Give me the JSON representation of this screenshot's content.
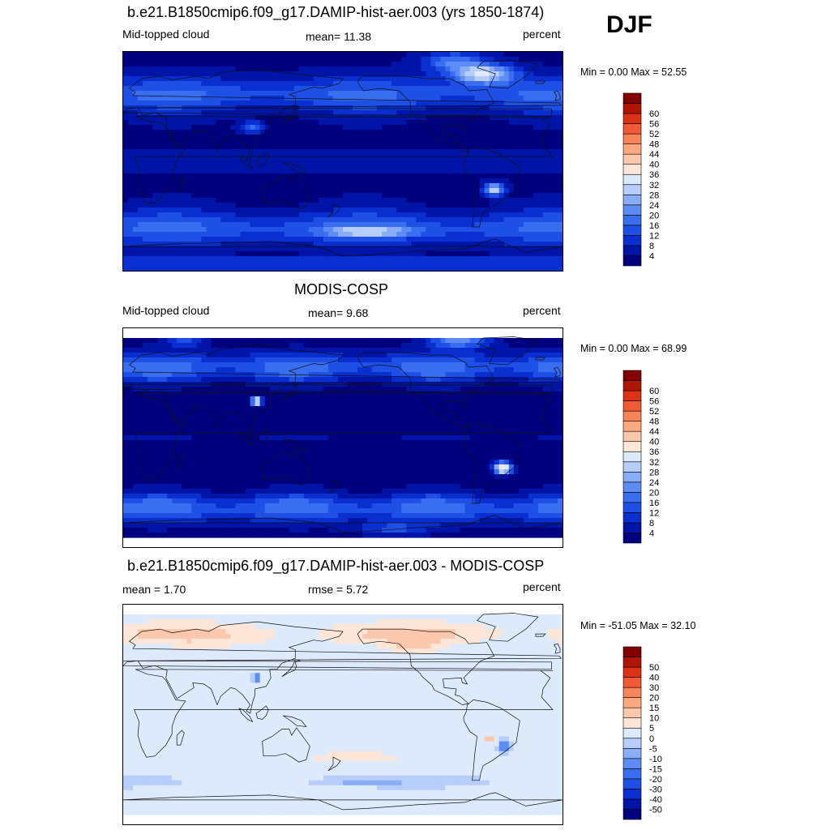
{
  "season": "DJF",
  "panels": [
    {
      "title": "b.e21.B1850cmip6.f09_g17.DAMIP-hist-aer.003 (yrs 1850-1874)",
      "left_label": "Mid-topped cloud",
      "center_label": "mean=  11.38",
      "right_label": "percent",
      "minmax": "Min =    0.00 Max =  52.55",
      "colorbar": {
        "ticks": [
          "4",
          "8",
          "12",
          "16",
          "20",
          "24",
          "28",
          "32",
          "36",
          "40",
          "44",
          "48",
          "52",
          "56",
          "60"
        ],
        "colors": [
          "#00007f",
          "#0014a8",
          "#0a2fd0",
          "#1f50e6",
          "#3a6ef0",
          "#5e8cf5",
          "#8aadf8",
          "#b7cdfa",
          "#ddeafc",
          "#fde6d8",
          "#fcc8ad",
          "#fba87f",
          "#f8845a",
          "#f05a34",
          "#dd3216",
          "#b01404",
          "#820000"
        ]
      },
      "field": "model"
    },
    {
      "title": "MODIS-COSP",
      "left_label": "Mid-topped cloud",
      "center_label": "mean=   9.68",
      "right_label": "percent",
      "minmax": "Min =    0.00 Max =  68.99",
      "colorbar": {
        "ticks": [
          "4",
          "8",
          "12",
          "16",
          "20",
          "24",
          "28",
          "32",
          "36",
          "40",
          "44",
          "48",
          "52",
          "56",
          "60"
        ],
        "colors": [
          "#00007f",
          "#0014a8",
          "#0a2fd0",
          "#1f50e6",
          "#3a6ef0",
          "#5e8cf5",
          "#8aadf8",
          "#b7cdfa",
          "#ddeafc",
          "#fde6d8",
          "#fcc8ad",
          "#fba87f",
          "#f8845a",
          "#f05a34",
          "#dd3216",
          "#b01404",
          "#820000"
        ]
      },
      "field": "obs"
    },
    {
      "title": "b.e21.B1850cmip6.f09_g17.DAMIP-hist-aer.003 - MODIS-COSP",
      "left_label": "mean =   1.70",
      "center_label": "rmse =    5.72",
      "right_label": "percent",
      "minmax": "Min = -51.05 Max =  32.10",
      "colorbar": {
        "ticks": [
          "-50",
          "-40",
          "-30",
          "-20",
          "-15",
          "-10",
          "-5",
          "0",
          "5",
          "10",
          "15",
          "20",
          "30",
          "40",
          "50"
        ],
        "colors": [
          "#00007f",
          "#0014a8",
          "#0a2fd0",
          "#1f50e6",
          "#3a6ef0",
          "#5e8cf5",
          "#8aadf8",
          "#b7cdfa",
          "#ddeafc",
          "#fde6d8",
          "#fcc8ad",
          "#fba87f",
          "#f8845a",
          "#f05a34",
          "#dd3216",
          "#b01404",
          "#820000"
        ]
      },
      "field": "diff"
    }
  ],
  "chart_data": [
    {
      "type": "heatmap",
      "title": "b.e21.B1850cmip6.f09_g17.DAMIP-hist-aer.003 (yrs 1850-1874)",
      "variable": "Mid-topped cloud",
      "units": "percent",
      "mean": 11.38,
      "min": 0.0,
      "max": 52.55,
      "levels": [
        4,
        8,
        12,
        16,
        20,
        24,
        28,
        32,
        36,
        40,
        44,
        48,
        52,
        56,
        60
      ]
    },
    {
      "type": "heatmap",
      "title": "MODIS-COSP",
      "variable": "Mid-topped cloud",
      "units": "percent",
      "mean": 9.68,
      "min": 0.0,
      "max": 68.99,
      "levels": [
        4,
        8,
        12,
        16,
        20,
        24,
        28,
        32,
        36,
        40,
        44,
        48,
        52,
        56,
        60
      ]
    },
    {
      "type": "heatmap",
      "title": "b.e21.B1850cmip6.f09_g17.DAMIP-hist-aer.003 - MODIS-COSP",
      "units": "percent",
      "mean": 1.7,
      "rmse": 5.72,
      "min": -51.05,
      "max": 32.1,
      "levels": [
        -50,
        -40,
        -30,
        -20,
        -15,
        -10,
        -5,
        0,
        5,
        10,
        15,
        20,
        30,
        40,
        50
      ]
    }
  ]
}
